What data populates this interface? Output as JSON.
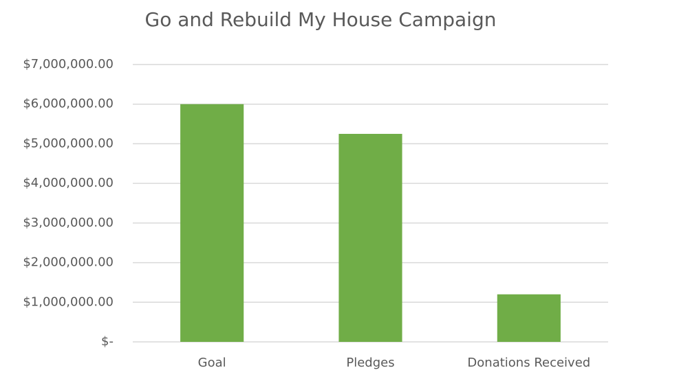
{
  "chart_data": {
    "type": "bar",
    "title": "Go and Rebuild My House Campaign",
    "categories": [
      "Goal",
      "Pledges",
      "Donations Received"
    ],
    "values": [
      6000000,
      5250000,
      1200000
    ],
    "color": "#70ad47",
    "ylim": [
      0,
      7000000
    ],
    "yticks": [
      {
        "value": 0,
        "label": "$-"
      },
      {
        "value": 1000000,
        "label": "$1,000,000.00"
      },
      {
        "value": 2000000,
        "label": "$2,000,000.00"
      },
      {
        "value": 3000000,
        "label": "$3,000,000.00"
      },
      {
        "value": 4000000,
        "label": "$4,000,000.00"
      },
      {
        "value": 5000000,
        "label": "$5,000,000.00"
      },
      {
        "value": 6000000,
        "label": "$6,000,000.00"
      },
      {
        "value": 7000000,
        "label": "$7,000,000.00"
      }
    ],
    "grid": true
  }
}
